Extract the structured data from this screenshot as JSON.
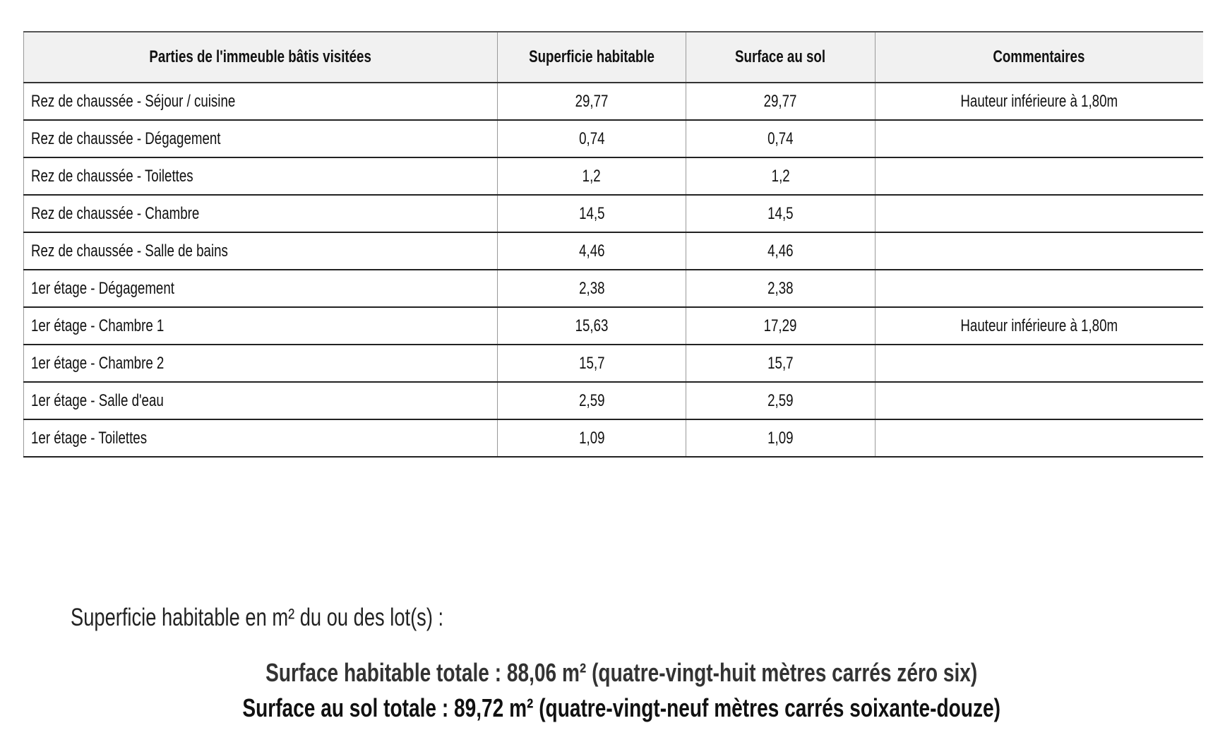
{
  "table": {
    "headers": [
      "Parties de l'immeuble bâtis visitées",
      "Superficie habitable",
      "Surface au sol",
      "Commentaires"
    ],
    "rows": [
      [
        "Rez de chaussée - Séjour / cuisine",
        "29,77",
        "29,77",
        "Hauteur inférieure à 1,80m"
      ],
      [
        "Rez de chaussée - Dégagement",
        "0,74",
        "0,74",
        ""
      ],
      [
        "Rez de chaussée - Toilettes",
        "1,2",
        "1,2",
        ""
      ],
      [
        "Rez de chaussée - Chambre",
        "14,5",
        "14,5",
        ""
      ],
      [
        "Rez de chaussée - Salle de bains",
        "4,46",
        "4,46",
        ""
      ],
      [
        "1er étage - Dégagement",
        "2,38",
        "2,38",
        ""
      ],
      [
        "1er étage - Chambre 1",
        "15,63",
        "17,29",
        "Hauteur inférieure à 1,80m"
      ],
      [
        "1er étage - Chambre 2",
        "15,7",
        "15,7",
        ""
      ],
      [
        "1er étage - Salle d'eau",
        "2,59",
        "2,59",
        ""
      ],
      [
        "1er étage - Toilettes",
        "1,09",
        "1,09",
        ""
      ]
    ]
  },
  "summary": {
    "label": "Superficie habitable en m² du ou des lot(s) :",
    "total_habitable": "Surface habitable totale : 88,06 m² (quatre-vingt-huit mètres carrés zéro six)",
    "total_sol": "Surface au sol totale : 89,72 m² (quatre-vingt-neuf mètres carrés soixante-douze)"
  }
}
